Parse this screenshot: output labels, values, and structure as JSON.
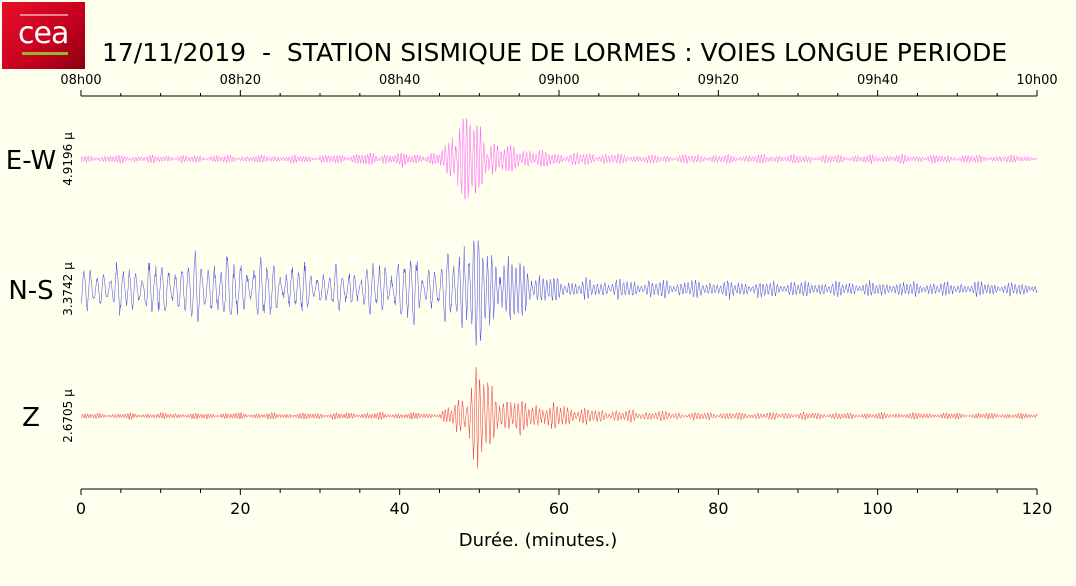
{
  "title": "17/11/2019  -  STATION SISMIQUE DE LORMES : VOIES LONGUE PERIODE",
  "logo_text": "cea",
  "chart_data": {
    "type": "line",
    "title": "17/11/2019  -  STATION SISMIQUE DE LORMES : VOIES LONGUE PERIODE",
    "xlabel": "Durée.  (minutes.)",
    "xlim": [
      0,
      120
    ],
    "x_ticks": [
      0,
      20,
      40,
      60,
      80,
      100,
      120
    ],
    "x_tick_labels": [
      "0",
      "20",
      "40",
      "60",
      "80",
      "100",
      "120"
    ],
    "time_ticks": [
      "08h00",
      "08h20",
      "08h40",
      "09h00",
      "09h20",
      "09h40",
      "10h00"
    ],
    "series": [
      {
        "name": "E-W",
        "scale_label": "4.9196 µ",
        "color": "#ff55ff",
        "envelope": [
          [
            0,
            0.05
          ],
          [
            30,
            0.05
          ],
          [
            35,
            0.08
          ],
          [
            45,
            0.08
          ],
          [
            46.5,
            0.35
          ],
          [
            47.3,
            0.95
          ],
          [
            48.5,
            0.7
          ],
          [
            50,
            0.45
          ],
          [
            52,
            0.25
          ],
          [
            55,
            0.15
          ],
          [
            60,
            0.09
          ],
          [
            70,
            0.06
          ],
          [
            120,
            0.05
          ]
        ],
        "freq": [
          [
            0,
            2.2
          ],
          [
            45,
            2.2
          ],
          [
            46,
            1.6
          ],
          [
            55,
            1.9
          ],
          [
            120,
            2.2
          ]
        ]
      },
      {
        "name": "N-S",
        "scale_label": "3.3742 µ",
        "color": "#4444ee",
        "envelope": [
          [
            0,
            0.25
          ],
          [
            10,
            0.35
          ],
          [
            17,
            0.45
          ],
          [
            22,
            0.4
          ],
          [
            30,
            0.25
          ],
          [
            36,
            0.3
          ],
          [
            41,
            0.45
          ],
          [
            45,
            0.3
          ],
          [
            47,
            0.6
          ],
          [
            49,
            0.9
          ],
          [
            52,
            0.5
          ],
          [
            55,
            0.4
          ],
          [
            58,
            0.2
          ],
          [
            62,
            0.12
          ],
          [
            120,
            0.08
          ]
        ],
        "freq": [
          [
            0,
            0.7
          ],
          [
            45,
            0.8
          ],
          [
            50,
            1.2
          ],
          [
            58,
            1.6
          ],
          [
            120,
            1.8
          ]
        ]
      },
      {
        "name": "Z",
        "scale_label": "2.6705 µ",
        "color": "#ee3333",
        "envelope": [
          [
            0,
            0.04
          ],
          [
            30,
            0.05
          ],
          [
            45,
            0.05
          ],
          [
            46.5,
            0.15
          ],
          [
            48,
            0.4
          ],
          [
            49.3,
            0.95
          ],
          [
            51,
            0.5
          ],
          [
            55,
            0.25
          ],
          [
            58,
            0.2
          ],
          [
            65,
            0.1
          ],
          [
            75,
            0.06
          ],
          [
            120,
            0.04
          ]
        ],
        "freq": [
          [
            0,
            2.5
          ],
          [
            45,
            2.4
          ],
          [
            48,
            1.3
          ],
          [
            55,
            1.6
          ],
          [
            120,
            2.4
          ]
        ]
      }
    ]
  }
}
